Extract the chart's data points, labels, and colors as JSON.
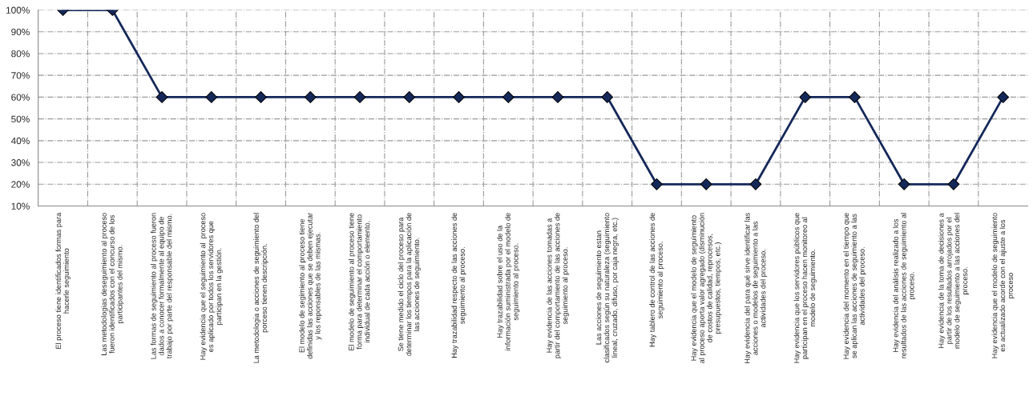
{
  "chart_data": {
    "type": "line",
    "categories": [
      "El proceso tiene identificados formas para\nhacerle seguimiento",
      "Las metodologias deseguimiento al proceso\nfueron identificados con el concurso de los\nparticipantes del mismo.",
      "Las formas de seguimiento al proceso fueron\ndados a conocer formalmente al equipo de\ntrabajo por parte del responsable del mismo.",
      "Hay evidencia que el seguimiento al  proceso\nes aplicado por todos los servidores que\nparticipan en la gestión.",
      "La metodologia o acciones de seguimiento del\nporceso tienen descripción.",
      "El modelo de segimiento al proceso tiene\ndefinidas las acciones que se deben ejecutar\ny los reponsables de las mismas.",
      "El modelo de seguimiento al proceso tiene\nforma para determinar el comportamiento\nindividual de cada acción o elemento.",
      "Se tiene medido el ciclo del proceso para\ndeterminar los tiempos para la aplicación de\nlas acciones de seguimiento.",
      "Hay trazabilidad respecto de las acciones de\nseguimiento al proceso.",
      "Hay trazabilidad sobre el uso de la\ninformación suministrada por el modelo de\nseguimiento al proceso.",
      "Hay evidencia de las acciones tomadas a\npartir del comportamiento de las acciones de\nseguimiento al proceso.",
      "Las acciones de seguimiento estan\nclasificados según su naturaleza (seguimiento\nlineal, cruzado, difuso, por caja negra, etc.)",
      "Hay tablero de control de las acciones de\nseguimiento al proceso.",
      "Hay evidencia que el modelo de seguimiento\nal proceso aporta valor agregado (disminución\nde costos de calidad, reprocesos,\npresupuestos, tiempos, etc.)",
      "Hay evidencia del para qué sirve identificar las\nacciones o modelos de seguimiento a las\nactividades del proceso.",
      "Hay evidencia que los servidores públicos que\nparticipan en el proceso hacen monitoreo al\nmodelo de seguimiento.",
      "Hay evidencia del momento en el tiempo que\nse aplican las acciones de seguimiento a las\nactividades del proceso.",
      "Hay evidencia del análisis realizado a los\nresultados de las acciones de seguimiento al\nproceso.",
      "Hay evidencia de la toma de decisiones a\npartir de los resultados arrojados por el\nmodelo de seguimiento a las acciones del\nproceso.",
      "Hay evidencia que el modelo de seguimiento\nes actualizado acorde con el ajuste a los\nproceso"
    ],
    "series": [
      {
        "color": "#14285a",
        "values": [
          100,
          100,
          60,
          60,
          60,
          60,
          60,
          60,
          60,
          60,
          60,
          60,
          20,
          20,
          20,
          60,
          60,
          20,
          20,
          60
        ]
      }
    ],
    "ylim": [
      10,
      100
    ],
    "yticks": [
      {
        "value": 10,
        "label": "10%"
      },
      {
        "value": 20,
        "label": "20%"
      },
      {
        "value": 30,
        "label": "30%"
      },
      {
        "value": 40,
        "label": "40%"
      },
      {
        "value": 50,
        "label": "50%"
      },
      {
        "value": 60,
        "label": "60%"
      },
      {
        "value": 70,
        "label": "70%"
      },
      {
        "value": 80,
        "label": "80%"
      },
      {
        "value": 90,
        "label": "90%"
      },
      {
        "value": 100,
        "label": "100%"
      }
    ],
    "grid": true,
    "marker": "diamond",
    "line_style": "solid"
  }
}
